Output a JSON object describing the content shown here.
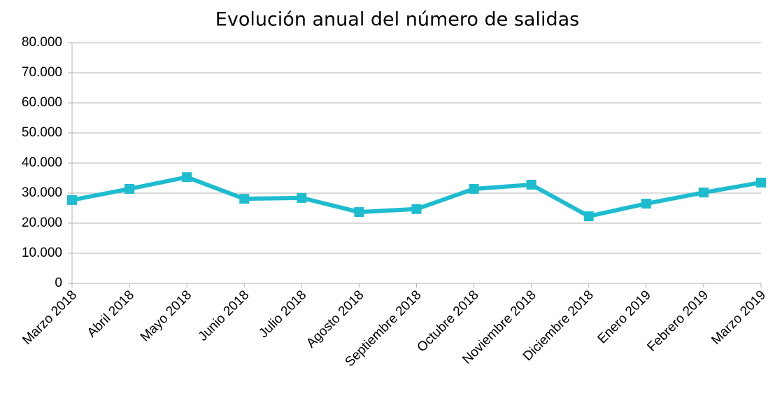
{
  "chart_data": {
    "type": "line",
    "title": "Evolución anual del número de salidas",
    "categories": [
      "Marzo 2018",
      "Abril 2018",
      "Mayo 2018",
      "Junio 2018",
      "Julio 2018",
      "Agosto 2018",
      "Septiembre 2018",
      "Octubre 2018",
      "Noviembre 2018",
      "Diciembre 2018",
      "Enero 2019",
      "Febrero 2019",
      "Marzo 2019"
    ],
    "values": [
      27700,
      31400,
      35300,
      28100,
      28400,
      23700,
      24700,
      31400,
      32800,
      22300,
      26500,
      30200,
      33500
    ],
    "color": "#1ebccf",
    "ylim": [
      0,
      80000
    ],
    "yticks": [
      0,
      {
        "value": 10000,
        "label": "10.000"
      },
      {
        "value": 20000,
        "label": "20.000"
      },
      {
        "value": 30000,
        "label": "30.000"
      },
      {
        "value": 40000,
        "label": "40.000"
      },
      {
        "value": 50000,
        "label": "50.000"
      },
      {
        "value": 60000,
        "label": "60.000"
      },
      {
        "value": 70000,
        "label": "70.000"
      },
      {
        "value": 80000,
        "label": "80.000"
      }
    ],
    "grid": true
  }
}
